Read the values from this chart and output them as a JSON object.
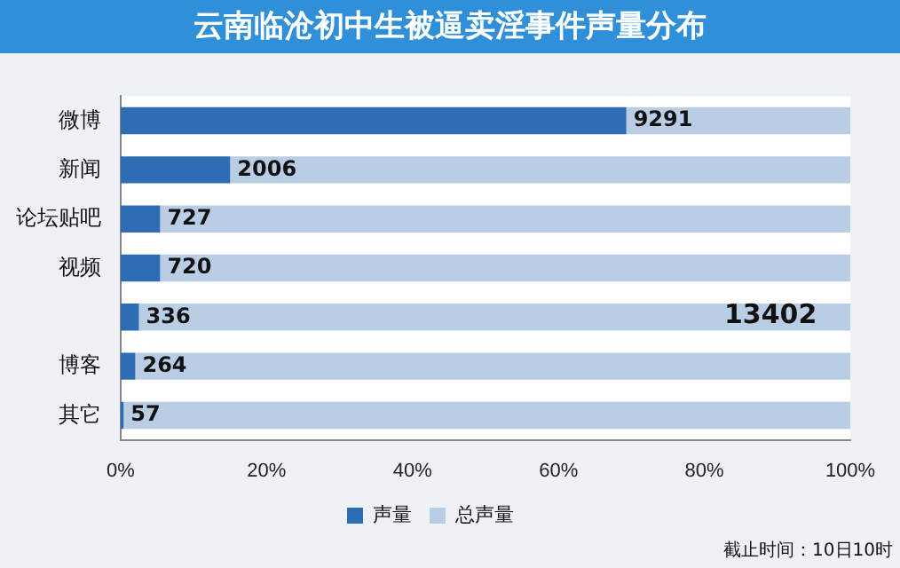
{
  "chart_data": {
    "type": "bar",
    "title": "云南临沧初中生被逼卖淫事件声量分布",
    "orientation": "horizontal",
    "stacked": true,
    "categories": [
      "微博",
      "新闻",
      "论坛贴吧",
      "视频",
      null,
      "博客",
      "其它"
    ],
    "series": [
      {
        "name": "声量",
        "color": "#2e6db4",
        "values": [
          69.3,
          15.0,
          5.4,
          5.4,
          2.5,
          2.0,
          0.4
        ]
      },
      {
        "name": "总声量",
        "color": "#b9cde5",
        "values": [
          30.7,
          85.0,
          94.6,
          94.6,
          97.5,
          98.0,
          99.6
        ]
      }
    ],
    "xlim": [
      0,
      100
    ],
    "xticks": [
      {
        "value": 0,
        "label": "0%"
      },
      {
        "value": 20,
        "label": "20%"
      },
      {
        "value": 40,
        "label": "40%"
      },
      {
        "value": 60,
        "label": "60%"
      },
      {
        "value": 80,
        "label": "80%"
      },
      {
        "value": 100,
        "label": "100%"
      }
    ],
    "legend": "bottom",
    "annotations": [
      {
        "text": "9291",
        "x": 69.3,
        "y": "微博"
      },
      {
        "text": "2006",
        "x": 15.0,
        "y": "新闻"
      },
      {
        "text": "727",
        "x": 5.4,
        "y": "论坛贴吧"
      },
      {
        "text": "720",
        "x": 5.4,
        "y": "视频"
      },
      {
        "text": "336",
        "x": 2.5
      },
      {
        "text": "264",
        "x": 2.0,
        "y": "博客"
      },
      {
        "text": "57",
        "x": 0.4,
        "y": "其它"
      },
      "13402",
      "截止时间：10日10时"
    ]
  }
}
